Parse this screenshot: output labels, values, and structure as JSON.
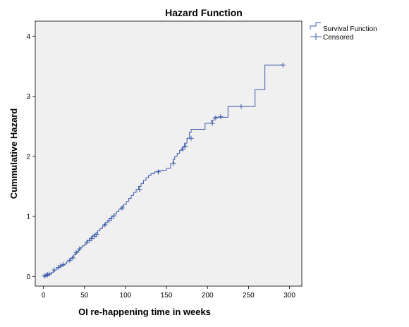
{
  "chart_data": {
    "type": "line",
    "title": "Hazard Function",
    "xlabel": "OI re-happening time in weeks",
    "ylabel": "Cummulative Hazard",
    "xlim": [
      -10,
      315
    ],
    "ylim": [
      -0.16,
      4.25
    ],
    "xticks": [
      0,
      50,
      100,
      150,
      200,
      250,
      300
    ],
    "yticks": [
      0,
      1,
      2,
      3,
      4
    ],
    "grid": false,
    "legend": "top-right",
    "series": [
      {
        "name": "Survival Function",
        "step": true,
        "x": [
          0,
          2,
          4,
          6,
          8,
          10,
          12,
          14,
          16,
          18,
          20,
          23,
          26,
          28,
          30,
          33,
          35,
          37,
          39,
          41,
          43,
          45,
          47,
          50,
          52,
          54,
          56,
          58,
          60,
          63,
          66,
          69,
          72,
          74,
          76,
          78,
          80,
          83,
          86,
          89,
          92,
          95,
          98,
          101,
          104,
          107,
          110,
          113,
          116,
          119,
          122,
          125,
          128,
          131,
          135,
          138,
          141,
          145,
          150,
          155,
          158,
          160,
          163,
          166,
          169,
          172,
          175,
          178,
          180,
          183,
          186,
          190,
          197,
          205,
          208,
          210,
          213,
          215,
          218,
          225,
          235,
          240,
          258,
          270,
          292
        ],
        "values": [
          0,
          0.01,
          0.02,
          0.03,
          0.05,
          0.07,
          0.09,
          0.11,
          0.13,
          0.15,
          0.17,
          0.19,
          0.21,
          0.24,
          0.27,
          0.3,
          0.33,
          0.36,
          0.39,
          0.42,
          0.45,
          0.48,
          0.51,
          0.54,
          0.57,
          0.6,
          0.63,
          0.66,
          0.69,
          0.72,
          0.76,
          0.8,
          0.84,
          0.87,
          0.9,
          0.93,
          0.96,
          1.0,
          1.04,
          1.08,
          1.12,
          1.16,
          1.2,
          1.25,
          1.3,
          1.35,
          1.4,
          1.45,
          1.5,
          1.55,
          1.6,
          1.64,
          1.68,
          1.71,
          1.74,
          1.75,
          1.76,
          1.77,
          1.8,
          1.88,
          1.95,
          2.0,
          2.05,
          2.1,
          2.15,
          2.22,
          2.3,
          2.4,
          2.45,
          2.45,
          2.45,
          2.45,
          2.55,
          2.6,
          2.65,
          2.65,
          2.65,
          2.65,
          2.65,
          2.83,
          2.83,
          2.83,
          3.11,
          3.52,
          3.52
        ]
      },
      {
        "name": "Censored",
        "marker": "plus",
        "x": [
          1,
          3,
          5,
          7,
          13,
          18,
          21,
          24,
          32,
          36,
          40,
          44,
          53,
          56,
          59,
          62,
          65,
          75,
          80,
          83,
          86,
          96,
          117,
          140,
          159,
          170,
          173,
          180,
          206,
          210,
          216,
          241,
          292
        ],
        "values": [
          0.01,
          0.02,
          0.03,
          0.04,
          0.11,
          0.15,
          0.18,
          0.2,
          0.27,
          0.31,
          0.4,
          0.46,
          0.57,
          0.6,
          0.63,
          0.67,
          0.7,
          0.86,
          0.93,
          0.97,
          1.01,
          1.14,
          1.45,
          1.74,
          1.88,
          2.12,
          2.17,
          2.3,
          2.55,
          2.64,
          2.66,
          2.83,
          3.52
        ]
      }
    ],
    "colors": {
      "line": "#3b5ba9",
      "plot_bg": "#f0f0f0",
      "frame": "#000000"
    }
  }
}
